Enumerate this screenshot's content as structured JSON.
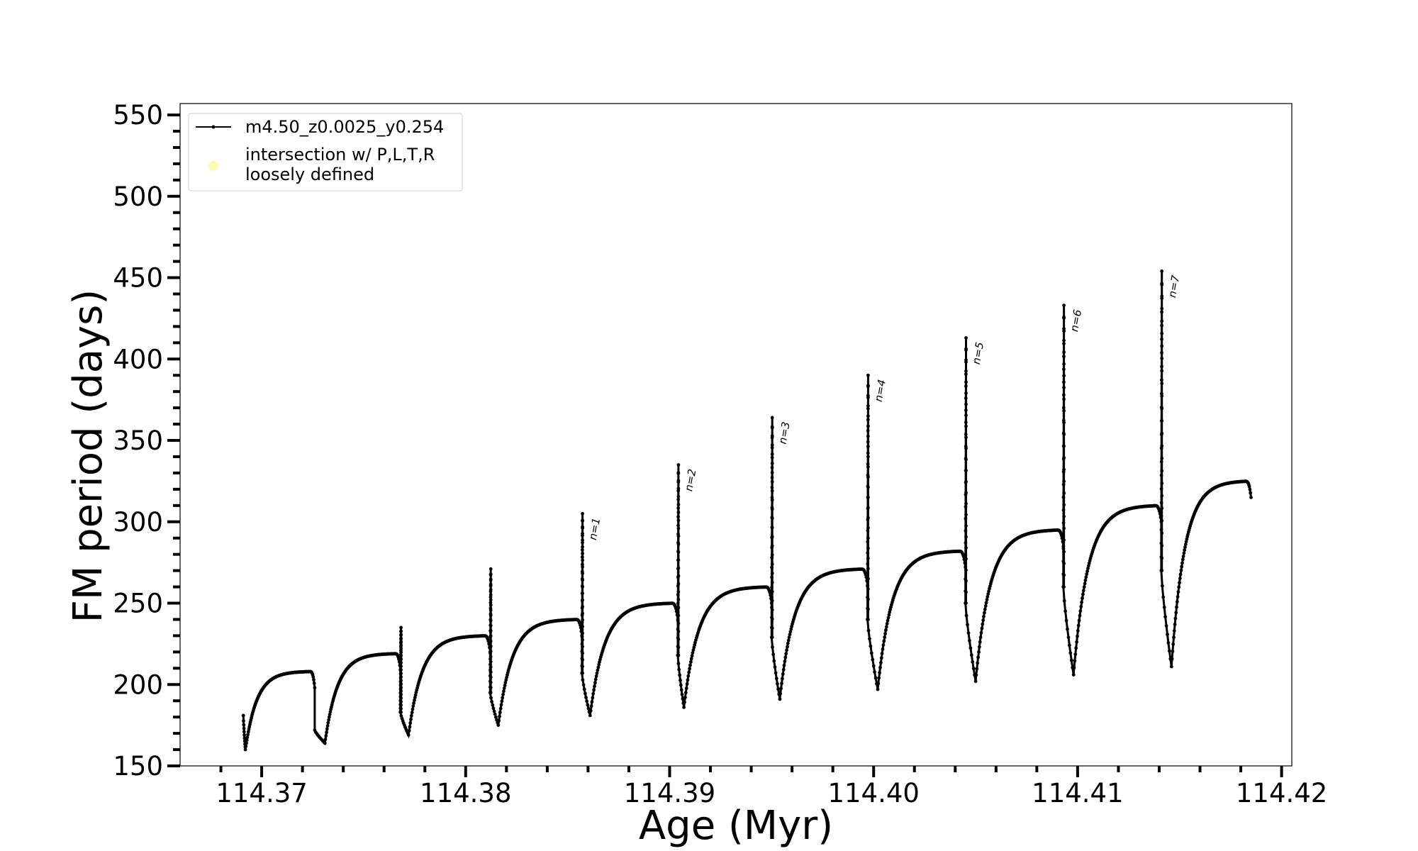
{
  "chart_data": {
    "type": "line",
    "xlabel": "Age (Myr)",
    "ylabel": "FM period (days)",
    "xlim": [
      114.366,
      114.4205
    ],
    "ylim": [
      150,
      557
    ],
    "x_major_ticks": [
      114.37,
      114.38,
      114.39,
      114.4,
      114.41,
      114.42
    ],
    "x_tick_labels": [
      "114.37",
      "114.38",
      "114.39",
      "114.40",
      "114.41",
      "114.42"
    ],
    "x_minor_step": 0.002,
    "y_major_ticks": [
      150,
      200,
      250,
      300,
      350,
      400,
      450,
      500,
      550
    ],
    "y_tick_labels": [
      "150",
      "200",
      "250",
      "300",
      "350",
      "400",
      "450",
      "500",
      "550"
    ],
    "y_minor_step": 10,
    "grid": false,
    "legend": {
      "placement": "upper-left",
      "entries": [
        {
          "label": "m4.50_z0.0025_y0.254",
          "style": "line",
          "color": "#000000"
        },
        {
          "label_lines": [
            "intersection w/ P,L,T,R",
            "loosely defined"
          ],
          "style": "marker",
          "color": "#fff9b0"
        }
      ]
    },
    "series": [
      {
        "name": "m4.50_z0.0025_y0.254",
        "color": "#000000",
        "cycles": [
          {
            "start": 114.3691,
            "start_p": 181,
            "min_x": 114.3692,
            "min_p": 160,
            "end_x": 114.3726,
            "end_p": 208,
            "spike_p": null
          },
          {
            "start": 114.3726,
            "start_p": 172,
            "min_x": 114.3731,
            "min_p": 164,
            "end_x": 114.3768,
            "end_p": 219,
            "spike_p": 235
          },
          {
            "start": 114.3768,
            "start_p": 183,
            "min_x": 114.3772,
            "min_p": 169,
            "end_x": 114.3812,
            "end_p": 230,
            "spike_p": 271
          },
          {
            "start": 114.3812,
            "start_p": 195,
            "min_x": 114.3816,
            "min_p": 175,
            "end_x": 114.3857,
            "end_p": 240,
            "spike_p": 305
          },
          {
            "start": 114.3857,
            "start_p": 207,
            "min_x": 114.3861,
            "min_p": 181,
            "end_x": 114.3904,
            "end_p": 250,
            "spike_p": 335
          },
          {
            "start": 114.3904,
            "start_p": 218,
            "min_x": 114.3907,
            "min_p": 186,
            "end_x": 114.395,
            "end_p": 260,
            "spike_p": 364
          },
          {
            "start": 114.395,
            "start_p": 229,
            "min_x": 114.3954,
            "min_p": 191,
            "end_x": 114.3997,
            "end_p": 271,
            "spike_p": 390
          },
          {
            "start": 114.3997,
            "start_p": 240,
            "min_x": 114.4002,
            "min_p": 197,
            "end_x": 114.4045,
            "end_p": 282,
            "spike_p": 413
          },
          {
            "start": 114.4045,
            "start_p": 250,
            "min_x": 114.405,
            "min_p": 202,
            "end_x": 114.4093,
            "end_p": 295,
            "spike_p": 433
          },
          {
            "start": 114.4093,
            "start_p": 260,
            "min_x": 114.4098,
            "min_p": 206,
            "end_x": 114.4141,
            "end_p": 310,
            "spike_p": 454
          },
          {
            "start": 114.4141,
            "start_p": 270,
            "min_x": 114.4146,
            "min_p": 211,
            "end_x": 114.4185,
            "end_p": 325,
            "spike_p": null
          }
        ]
      }
    ],
    "annotations": [
      {
        "text": "n=1",
        "x": 114.3857,
        "y": 305
      },
      {
        "text": "n=2",
        "x": 114.3904,
        "y": 335
      },
      {
        "text": "n=3",
        "x": 114.395,
        "y": 364
      },
      {
        "text": "n=4",
        "x": 114.3997,
        "y": 390
      },
      {
        "text": "n=5",
        "x": 114.4045,
        "y": 413
      },
      {
        "text": "n=6",
        "x": 114.4093,
        "y": 433
      },
      {
        "text": "n=7",
        "x": 114.4141,
        "y": 454
      }
    ]
  }
}
